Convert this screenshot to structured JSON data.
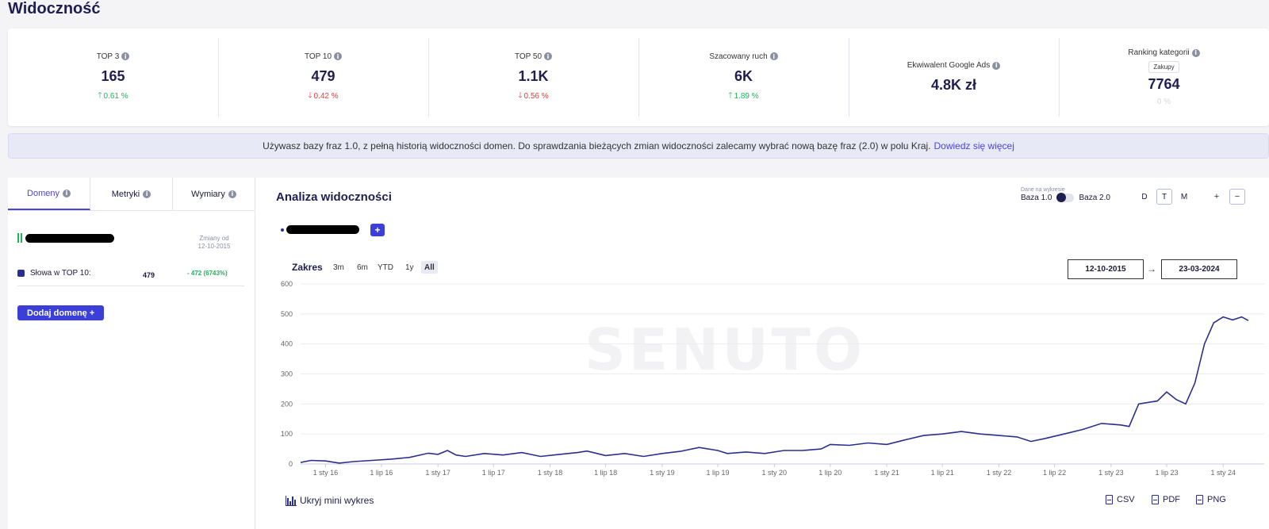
{
  "page": {
    "title": "Widoczność"
  },
  "kpis": [
    {
      "label": "TOP 3",
      "value": "165",
      "change": "0.61 %",
      "direction": "up"
    },
    {
      "label": "TOP 10",
      "value": "479",
      "change": "0.42 %",
      "direction": "down"
    },
    {
      "label": "TOP 50",
      "value": "1.1K",
      "change": "0.56 %",
      "direction": "down"
    },
    {
      "label": "Szacowany ruch",
      "value": "6K",
      "change": "1.89 %",
      "direction": "up"
    },
    {
      "label": "Ekwiwalent Google Ads",
      "value": "4.8K zł"
    },
    {
      "label": "Ranking kategorii",
      "tag": "Zakupy",
      "value": "7764",
      "change": "0 %",
      "direction": "none"
    }
  ],
  "banner": {
    "text": "Używasz bazy fraz 1.0, z pełną historią widoczności domen. Do sprawdzania bieżących zmian widoczności zalecamy wybrać nową bazę fraz (2.0) w polu Kraj.",
    "link": "Dowiedz się więcej"
  },
  "left_panel": {
    "tabs": [
      "Domeny",
      "Metryki",
      "Wymiary"
    ],
    "changes_since_label": "Zmiany od",
    "changes_since_date": "12-10-2015",
    "metric": {
      "label": "Słowa w TOP 10:",
      "value": "479",
      "delta": "- 472 (6743%)"
    },
    "add_domain_button": "Dodaj domenę +"
  },
  "main_panel": {
    "title": "Analiza widoczności",
    "base_toggle": {
      "caption": "Dane na wykresie",
      "left": "Baza 1.0",
      "right": "Baza 2.0"
    },
    "periods": [
      "D",
      "T",
      "M"
    ],
    "active_period": "T",
    "zoom_in": "+",
    "zoom_out": "−",
    "add_series": "+",
    "range": {
      "label": "Zakres",
      "options": [
        "3m",
        "6m",
        "YTD",
        "1y",
        "All"
      ],
      "active": "All"
    },
    "date_from": "12-10-2015",
    "date_to": "23-03-2024",
    "date_separator": "→",
    "mini_chart_toggle": "Ukryj mini wykres",
    "exports": [
      "CSV",
      "PDF",
      "PNG"
    ]
  },
  "chart_data": {
    "type": "line",
    "watermark": "SENUTO",
    "ylim": [
      0,
      600
    ],
    "y_ticks": [
      0,
      100,
      200,
      300,
      400,
      500,
      600
    ],
    "x_tick_labels": [
      "1 sty 16",
      "1 lip 16",
      "1 sty 17",
      "1 lip 17",
      "1 sty 18",
      "1 lip 18",
      "1 sty 19",
      "1 lip 19",
      "1 sty 20",
      "1 lip 20",
      "1 sty 21",
      "1 lip 21",
      "1 sty 22",
      "1 lip 22",
      "1 sty 23",
      "1 lip 23",
      "1 sty 24"
    ],
    "x_range": [
      "2015-10-12",
      "2024-03-23"
    ],
    "series": [
      {
        "color": "#2a2f8f",
        "points": [
          [
            "2015-10-12",
            5
          ],
          [
            "2015-11-15",
            12
          ],
          [
            "2016-01-01",
            10
          ],
          [
            "2016-02-15",
            3
          ],
          [
            "2016-04-01",
            8
          ],
          [
            "2016-06-01",
            12
          ],
          [
            "2016-08-01",
            16
          ],
          [
            "2016-10-01",
            22
          ],
          [
            "2016-12-01",
            36
          ],
          [
            "2017-01-01",
            32
          ],
          [
            "2017-02-01",
            45
          ],
          [
            "2017-03-01",
            30
          ],
          [
            "2017-04-01",
            25
          ],
          [
            "2017-06-01",
            35
          ],
          [
            "2017-08-01",
            30
          ],
          [
            "2017-10-01",
            38
          ],
          [
            "2017-12-01",
            25
          ],
          [
            "2018-02-01",
            32
          ],
          [
            "2018-04-01",
            38
          ],
          [
            "2018-05-01",
            43
          ],
          [
            "2018-07-01",
            28
          ],
          [
            "2018-09-01",
            35
          ],
          [
            "2018-11-01",
            25
          ],
          [
            "2019-01-01",
            35
          ],
          [
            "2019-03-01",
            42
          ],
          [
            "2019-05-01",
            55
          ],
          [
            "2019-07-01",
            45
          ],
          [
            "2019-08-01",
            35
          ],
          [
            "2019-10-01",
            40
          ],
          [
            "2019-12-01",
            35
          ],
          [
            "2020-02-01",
            45
          ],
          [
            "2020-04-01",
            45
          ],
          [
            "2020-06-01",
            50
          ],
          [
            "2020-07-01",
            65
          ],
          [
            "2020-09-01",
            62
          ],
          [
            "2020-11-01",
            70
          ],
          [
            "2021-01-01",
            65
          ],
          [
            "2021-03-01",
            80
          ],
          [
            "2021-05-01",
            95
          ],
          [
            "2021-07-01",
            100
          ],
          [
            "2021-09-01",
            108
          ],
          [
            "2021-11-01",
            100
          ],
          [
            "2022-01-01",
            95
          ],
          [
            "2022-03-01",
            90
          ],
          [
            "2022-04-15",
            75
          ],
          [
            "2022-06-01",
            85
          ],
          [
            "2022-08-01",
            100
          ],
          [
            "2022-10-01",
            115
          ],
          [
            "2022-12-01",
            135
          ],
          [
            "2023-02-01",
            130
          ],
          [
            "2023-03-01",
            125
          ],
          [
            "2023-04-01",
            200
          ],
          [
            "2023-05-01",
            205
          ],
          [
            "2023-06-01",
            210
          ],
          [
            "2023-07-01",
            240
          ],
          [
            "2023-08-01",
            215
          ],
          [
            "2023-09-01",
            200
          ],
          [
            "2023-10-01",
            270
          ],
          [
            "2023-11-01",
            400
          ],
          [
            "2023-12-01",
            470
          ],
          [
            "2024-01-01",
            490
          ],
          [
            "2024-02-01",
            480
          ],
          [
            "2024-03-01",
            490
          ],
          [
            "2024-03-23",
            478
          ]
        ]
      }
    ]
  }
}
